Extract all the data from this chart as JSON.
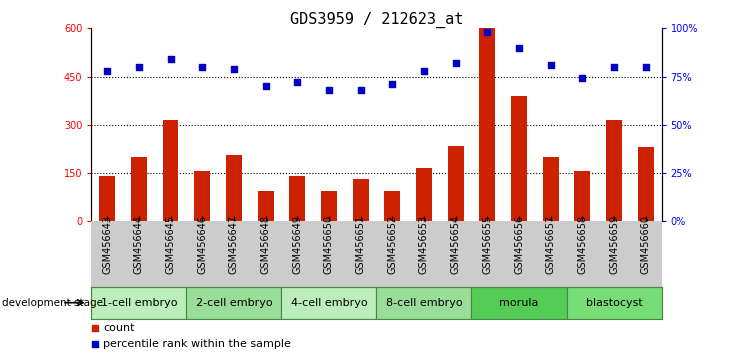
{
  "title": "GDS3959 / 212623_at",
  "samples": [
    "GSM456643",
    "GSM456644",
    "GSM456645",
    "GSM456646",
    "GSM456647",
    "GSM456648",
    "GSM456649",
    "GSM456650",
    "GSM456651",
    "GSM456652",
    "GSM456653",
    "GSM456654",
    "GSM456655",
    "GSM456656",
    "GSM456657",
    "GSM456658",
    "GSM456659",
    "GSM456660"
  ],
  "counts": [
    140,
    200,
    315,
    155,
    205,
    95,
    140,
    95,
    130,
    95,
    165,
    235,
    600,
    390,
    200,
    155,
    315,
    230
  ],
  "percentiles": [
    78,
    80,
    84,
    80,
    79,
    70,
    72,
    68,
    68,
    71,
    78,
    82,
    98,
    90,
    81,
    74,
    80,
    80
  ],
  "stages": [
    {
      "label": "1-cell embryo",
      "start": 0,
      "end": 3,
      "color": "#bbeebb"
    },
    {
      "label": "2-cell embryo",
      "start": 3,
      "end": 6,
      "color": "#99dd99"
    },
    {
      "label": "4-cell embryo",
      "start": 6,
      "end": 9,
      "color": "#bbeebb"
    },
    {
      "label": "8-cell embryo",
      "start": 9,
      "end": 12,
      "color": "#99dd99"
    },
    {
      "label": "morula",
      "start": 12,
      "end": 15,
      "color": "#55cc55"
    },
    {
      "label": "blastocyst",
      "start": 15,
      "end": 18,
      "color": "#77dd77"
    }
  ],
  "bar_color": "#cc2200",
  "dot_color": "#0000cc",
  "left_ylim": [
    0,
    600
  ],
  "right_ylim": [
    0,
    100
  ],
  "left_yticks": [
    0,
    150,
    300,
    450,
    600
  ],
  "left_yticklabels": [
    "0",
    "150",
    "300",
    "450",
    "600"
  ],
  "right_yticks": [
    0,
    25,
    50,
    75,
    100
  ],
  "right_yticklabels": [
    "0%",
    "25%",
    "50%",
    "75%",
    "100%"
  ],
  "grid_values": [
    150,
    300,
    450
  ],
  "dev_stage_label": "development stage",
  "legend_count_label": "count",
  "legend_pct_label": "percentile rank within the sample",
  "bar_width": 0.5,
  "bg_color": "#ffffff",
  "gray_bg": "#cccccc",
  "title_fontsize": 11,
  "tick_fontsize": 7,
  "stage_fontsize": 8
}
